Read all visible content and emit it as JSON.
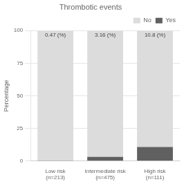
{
  "chart_data": {
    "type": "bar",
    "title": "Thrombotic events",
    "categories": [
      "Low risk\n(n=213)",
      "Intermediate risk\n(n=475)",
      "High risk\n(n=111)"
    ],
    "series": [
      {
        "name": "Yes",
        "color": "#606060",
        "values": [
          0.47,
          3.16,
          10.8
        ]
      },
      {
        "name": "No",
        "color": "#dcdcdc",
        "values": [
          99.53,
          96.84,
          89.2
        ]
      }
    ],
    "annotations": [
      "0.47 (%)",
      "3.16 (%)",
      "10.8 (%)"
    ],
    "ylabel": "Percentage",
    "ylim": [
      0,
      100
    ],
    "yticks": [
      0,
      25,
      50,
      75,
      100
    ],
    "stacked": true,
    "grid": true,
    "legend": "upper right"
  }
}
